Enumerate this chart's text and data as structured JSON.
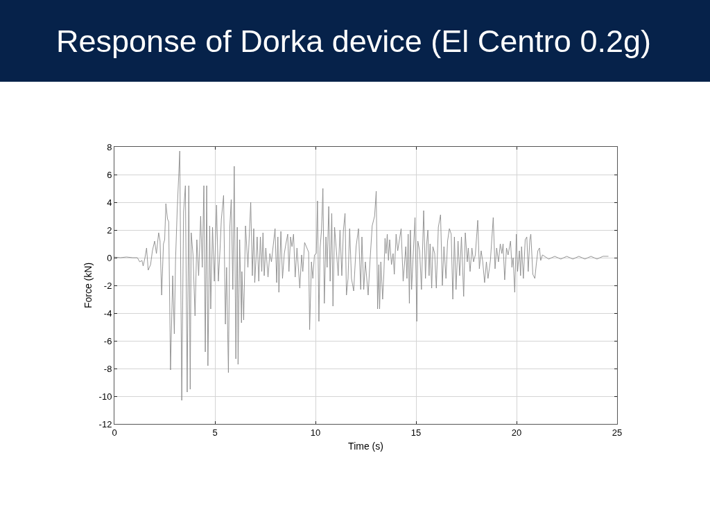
{
  "chart_data": {
    "type": "line",
    "title": "Response of Dorka device (El Centro 0.2g)",
    "xlabel": "Time (s)",
    "ylabel": "Force (kN)",
    "x": [
      0,
      0.3,
      0.6,
      0.9,
      1.14,
      1.26,
      1.37,
      1.43,
      1.52,
      1.6,
      1.68,
      1.8,
      1.89,
      2.0,
      2.09,
      2.2,
      2.27,
      2.35,
      2.44,
      2.5,
      2.56,
      2.64,
      2.7,
      2.79,
      2.9,
      2.98,
      3.04,
      3.12,
      3.25,
      3.35,
      3.44,
      3.53,
      3.62,
      3.7,
      3.77,
      3.82,
      3.91,
      4.01,
      4.1,
      4.19,
      4.29,
      4.37,
      4.45,
      4.52,
      4.59,
      4.65,
      4.74,
      4.79,
      4.88,
      4.97,
      5.08,
      5.17,
      5.25,
      5.32,
      5.43,
      5.52,
      5.58,
      5.67,
      5.74,
      5.81,
      5.89,
      5.96,
      6.04,
      6.11,
      6.15,
      6.23,
      6.32,
      6.34,
      6.43,
      6.52,
      6.64,
      6.78,
      6.86,
      6.93,
      6.98,
      7.1,
      7.18,
      7.26,
      7.33,
      7.39,
      7.45,
      7.53,
      7.64,
      7.73,
      7.81,
      7.99,
      8.07,
      8.13,
      8.18,
      8.28,
      8.36,
      8.45,
      8.53,
      8.62,
      8.68,
      8.76,
      8.83,
      8.91,
      8.99,
      9.08,
      9.22,
      9.31,
      9.37,
      9.46,
      9.66,
      9.71,
      9.8,
      9.87,
      9.95,
      10.04,
      10.1,
      10.17,
      10.23,
      10.3,
      10.37,
      10.44,
      10.52,
      10.58,
      10.66,
      10.73,
      10.81,
      10.87,
      10.95,
      11.04,
      11.13,
      11.22,
      11.31,
      11.39,
      11.47,
      11.54,
      11.62,
      11.7,
      11.79,
      11.9,
      12.02,
      12.14,
      12.25,
      12.31,
      12.4,
      12.48,
      12.62,
      12.71,
      12.82,
      12.94,
      13.02,
      13.09,
      13.15,
      13.19,
      13.25,
      13.34,
      13.4,
      13.46,
      13.51,
      13.57,
      13.63,
      13.69,
      13.78,
      13.86,
      13.92,
      14.01,
      14.09,
      14.26,
      14.36,
      14.44,
      14.49,
      14.55,
      14.61,
      14.67,
      14.72,
      14.78,
      14.87,
      14.95,
      15.04,
      15.09,
      15.18,
      15.27,
      15.38,
      15.47,
      15.53,
      15.59,
      15.65,
      15.7,
      15.78,
      15.84,
      15.93,
      16.01,
      16.11,
      16.22,
      16.31,
      16.39,
      16.49,
      16.57,
      16.66,
      16.75,
      16.83,
      16.91,
      16.99,
      17.09,
      17.17,
      17.26,
      17.37,
      17.45,
      17.55,
      17.6,
      17.69,
      17.78,
      17.86,
      17.95,
      18.07,
      18.15,
      18.24,
      18.32,
      18.41,
      18.5,
      18.58,
      18.7,
      18.84,
      18.93,
      19.01,
      19.1,
      19.19,
      19.27,
      19.33,
      19.41,
      19.5,
      19.58,
      19.7,
      19.77,
      19.83,
      19.91,
      19.99,
      20.05,
      20.14,
      20.2,
      20.25,
      20.34,
      20.43,
      20.51,
      20.58,
      20.66,
      20.71,
      20.81,
      20.91,
      20.98,
      21.06,
      21.14,
      21.2,
      21.29,
      21.6,
      21.9,
      22.2,
      22.5,
      22.8,
      23.1,
      23.4,
      23.7,
      24.0,
      24.3,
      24.57
    ],
    "series": [
      {
        "color": "#8a8a8a",
        "values": [
          0.05,
          0,
          0.05,
          0,
          0,
          -0.3,
          -0.2,
          -0.6,
          0,
          0.7,
          -0.9,
          -0.5,
          0.5,
          1.2,
          0.3,
          1.8,
          1.2,
          -2.7,
          1.0,
          1.3,
          3.9,
          2.8,
          2.6,
          -8.1,
          -1.3,
          -5.5,
          -0.2,
          3.3,
          7.7,
          -10.3,
          3.3,
          5.2,
          -9.7,
          5.2,
          -9.5,
          1.8,
          0.2,
          -4.2,
          1.3,
          -1.3,
          3.0,
          -0.7,
          5.2,
          -6.8,
          5.2,
          -7.8,
          2.3,
          -3.7,
          2.2,
          -1.7,
          3.8,
          -1.7,
          0.5,
          2.8,
          4.5,
          -4.8,
          -0.7,
          -8.3,
          2.2,
          4.2,
          -2.3,
          6.6,
          -7.3,
          2.2,
          -7.7,
          1.3,
          -4.7,
          -1.0,
          -4.5,
          2.3,
          -0.7,
          4.0,
          -1.3,
          2.1,
          -1.8,
          1.5,
          -1.7,
          1.5,
          -1.0,
          1.8,
          -1.3,
          0.7,
          -1.4,
          0.3,
          -0.3,
          2.1,
          -1.8,
          1.5,
          -2.5,
          1.9,
          -1.5,
          0.3,
          1.0,
          1.7,
          -1.0,
          1.5,
          0.8,
          1.7,
          -1.4,
          0.7,
          -2.2,
          0.2,
          -1.0,
          1.1,
          0.4,
          -5.2,
          -0.3,
          -1.5,
          0.2,
          0.3,
          4.1,
          -4.6,
          0.7,
          2.0,
          5.0,
          -3.3,
          1.5,
          -0.7,
          3.7,
          -1.7,
          3.2,
          -3.5,
          2.2,
          0.5,
          -1.3,
          2.0,
          -1.3,
          2.0,
          3.2,
          -2.7,
          -1.5,
          2.1,
          -1.5,
          -2.4,
          0.8,
          2.1,
          -2.3,
          1.5,
          -2.3,
          -0.3,
          -2.7,
          -0.3,
          2.3,
          3.0,
          4.8,
          -3.7,
          -0.5,
          -3.7,
          -0.3,
          -3.0,
          -1.2,
          1.4,
          0.3,
          1.7,
          -0.2,
          1.3,
          -0.5,
          0.3,
          -1.2,
          1.7,
          0.5,
          2.1,
          -1.7,
          -0.2,
          0.8,
          -1.5,
          1.7,
          -3.3,
          2.0,
          -2.3,
          0.5,
          2.9,
          -4.6,
          1.2,
          0.5,
          -2.3,
          3.4,
          -1.5,
          1.0,
          2.0,
          -1.3,
          1.0,
          -2.2,
          0.8,
          0.3,
          -2.2,
          2.2,
          3.1,
          -2.0,
          0.8,
          -1.5,
          1.2,
          2.1,
          1.7,
          -3.0,
          1.5,
          -2.3,
          1.2,
          -1.3,
          1.5,
          -2.8,
          1.8,
          -0.3,
          0.7,
          -1.0,
          0.7,
          -0.3,
          0.2,
          2.7,
          -0.8,
          0.5,
          -0.3,
          -1.8,
          -0.3,
          -1.5,
          -0.2,
          2.9,
          -0.8,
          0.7,
          -0.3,
          1.0,
          0.3,
          1.0,
          -1.6,
          0.7,
          0.2,
          1.2,
          -0.7,
          0,
          -2.5,
          1.7,
          -1.0,
          0.5,
          -1.3,
          0.8,
          -1.5,
          1.3,
          1.5,
          -1.0,
          1.3,
          1.7,
          -1.2,
          -1.5,
          -0.5,
          0.5,
          0.7,
          -0.2,
          0.2,
          -0.1,
          0.1,
          -0.1,
          0.1,
          -0.1,
          0.1,
          -0.1,
          0.1,
          -0.1,
          0.1,
          0.1
        ]
      }
    ],
    "xlim": [
      0,
      25
    ],
    "ylim": [
      -12,
      8
    ],
    "xticks": [
      0,
      5,
      10,
      15,
      20,
      25
    ],
    "yticks": [
      -12,
      -10,
      -8,
      -6,
      -4,
      -2,
      0,
      2,
      4,
      6,
      8
    ],
    "grid": true,
    "line_style": "solid"
  }
}
